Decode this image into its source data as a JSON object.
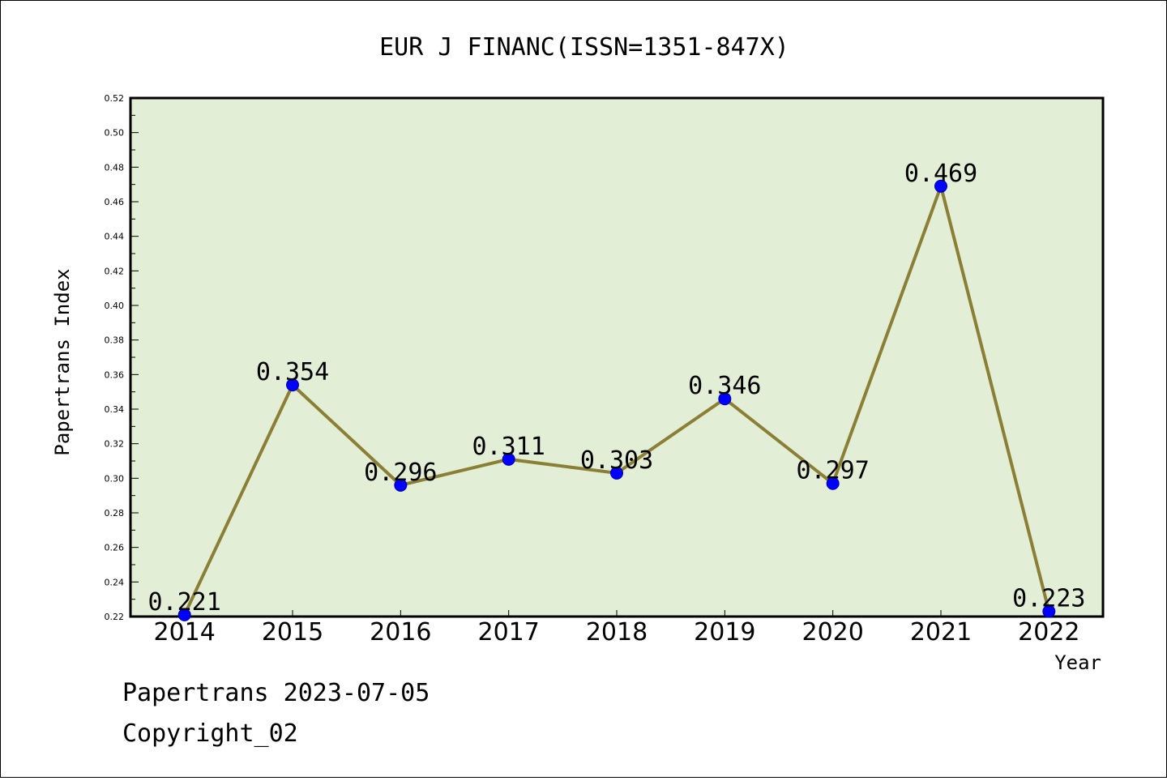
{
  "chart_data": {
    "type": "line",
    "title": "EUR J FINANC(ISSN=1351-847X)",
    "xlabel": "Year",
    "ylabel": "Papertrans Index",
    "categories": [
      "2014",
      "2015",
      "2016",
      "2017",
      "2018",
      "2019",
      "2020",
      "2021",
      "2022"
    ],
    "values": [
      0.221,
      0.354,
      0.296,
      0.311,
      0.303,
      0.346,
      0.297,
      0.469,
      0.223
    ],
    "data_labels": [
      "0.221",
      "0.354",
      "0.296",
      "0.311",
      "0.303",
      "0.346",
      "0.297",
      "0.469",
      "0.223"
    ],
    "yticks": [
      "0.22",
      "0.24",
      "0.26",
      "0.28",
      "0.30",
      "0.32",
      "0.34",
      "0.36",
      "0.38",
      "0.40",
      "0.42",
      "0.44",
      "0.46",
      "0.48",
      "0.50",
      "0.52"
    ],
    "ylim": [
      0.22,
      0.52
    ],
    "grid": false,
    "colors": {
      "plot_background": "#e2efd6",
      "line": "#8b7f35",
      "marker": "#0000ff"
    }
  },
  "footer": {
    "line1": "Papertrans 2023-07-05",
    "line2": "Copyright_02"
  }
}
